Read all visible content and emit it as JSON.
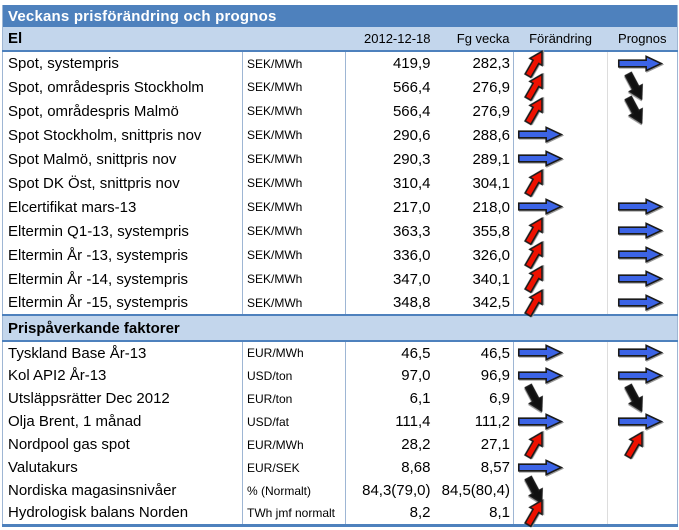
{
  "title": "Veckans prisförändring och prognos",
  "columns": {
    "current": "2012-12-18",
    "previous": "Fg vecka",
    "change": "Förändring",
    "forecast": "Prognos"
  },
  "icons": {
    "up": "red-up-arrow",
    "down": "black-down-arrow",
    "right": "blue-right-arrow"
  },
  "colors": {
    "title_bar": "#4E81BD",
    "section_bg": "#C3D6EC",
    "grid_blue": "#9EB6D4",
    "grid_light": "#DDDDDD",
    "arrow_red": "#EE1100",
    "arrow_blue": "#3C64E6",
    "arrow_black": "#101010",
    "arrow_outline": "#1a1a1a"
  },
  "sections": [
    {
      "name": "El",
      "rows": [
        {
          "label": "Spot, systempris",
          "unit": "SEK/MWh",
          "current": "419,9",
          "previous": "282,3",
          "change": "up",
          "forecast": "right"
        },
        {
          "label": "Spot, områdespris Stockholm",
          "unit": "SEK/MWh",
          "current": "566,4",
          "previous": "276,9",
          "change": "up",
          "forecast": "down"
        },
        {
          "label": "Spot, områdespris Malmö",
          "unit": "SEK/MWh",
          "current": "566,4",
          "previous": "276,9",
          "change": "up",
          "forecast": "down"
        },
        {
          "label": "Spot Stockholm, snittpris nov",
          "unit": "SEK/MWh",
          "current": "290,6",
          "previous": "288,6",
          "change": "right",
          "forecast": "none"
        },
        {
          "label": "Spot Malmö, snittpris nov",
          "unit": "SEK/MWh",
          "current": "290,3",
          "previous": "289,1",
          "change": "right",
          "forecast": "none"
        },
        {
          "label": "Spot DK Öst, snittpris nov",
          "unit": "SEK/MWh",
          "current": "310,4",
          "previous": "304,1",
          "change": "up",
          "forecast": "none"
        },
        {
          "label": "Elcertifikat mars-13",
          "unit": "SEK/MWh",
          "current": "217,0",
          "previous": "218,0",
          "change": "right",
          "forecast": "right"
        },
        {
          "label": "Eltermin Q1-13, systempris",
          "unit": "SEK/MWh",
          "current": "363,3",
          "previous": "355,8",
          "change": "up",
          "forecast": "right"
        },
        {
          "label": "Eltermin År -13, systempris",
          "unit": "SEK/MWh",
          "current": "336,0",
          "previous": "326,0",
          "change": "up",
          "forecast": "right"
        },
        {
          "label": "Eltermin År -14, systempris",
          "unit": "SEK/MWh",
          "current": "347,0",
          "previous": "340,1",
          "change": "up",
          "forecast": "right"
        },
        {
          "label": "Eltermin År -15, systempris",
          "unit": "SEK/MWh",
          "current": "348,8",
          "previous": "342,5",
          "change": "up",
          "forecast": "right"
        }
      ]
    },
    {
      "name": "Prispåverkande faktorer",
      "rows": [
        {
          "label": "Tyskland Base År-13",
          "unit": "EUR/MWh",
          "current": "46,5",
          "previous": "46,5",
          "change": "right",
          "forecast": "right"
        },
        {
          "label": "Kol API2 År-13",
          "unit": "USD/ton",
          "current": "97,0",
          "previous": "96,9",
          "change": "right",
          "forecast": "right"
        },
        {
          "label": "Utsläppsrätter Dec 2012",
          "unit": "EUR/ton",
          "current": "6,1",
          "previous": "6,9",
          "change": "down",
          "forecast": "down"
        },
        {
          "label": "Olja Brent, 1 månad",
          "unit": "USD/fat",
          "current": "111,4",
          "previous": "111,2",
          "change": "right",
          "forecast": "right"
        },
        {
          "label": "Nordpool gas spot",
          "unit": "EUR/MWh",
          "current": "28,2",
          "previous": "27,1",
          "change": "up",
          "forecast": "up"
        },
        {
          "label": "Valutakurs",
          "unit": "EUR/SEK",
          "current": "8,68",
          "previous": "8,57",
          "change": "right",
          "forecast": "none"
        },
        {
          "label": "Nordiska magasinsnivåer",
          "unit": "% (Normalt)",
          "current": "84,3(79,0)",
          "previous": "84,5(80,4)",
          "change": "down",
          "forecast": "none"
        },
        {
          "label": "Hydrologisk balans Norden",
          "unit": "TWh jmf normalt",
          "current": "8,2",
          "previous": "8,1",
          "change": "up",
          "forecast": "none"
        }
      ]
    }
  ]
}
